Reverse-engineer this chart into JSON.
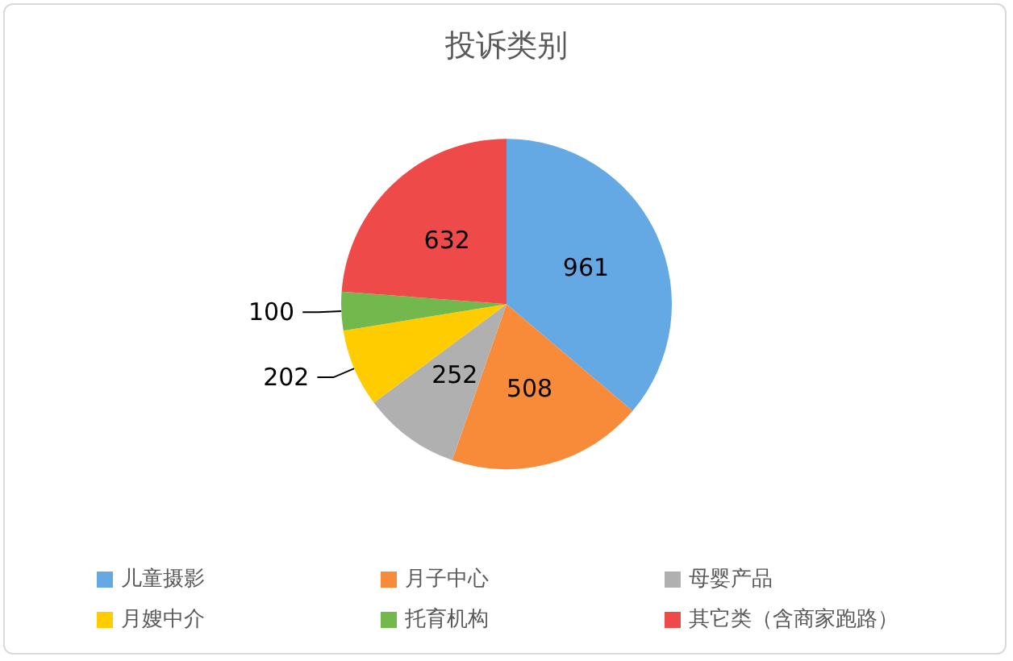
{
  "chart_data": {
    "type": "pie",
    "title": "投诉类别",
    "categories": [
      "儿童摄影",
      "月子中心",
      "母婴产品",
      "月嫂中介",
      "托育机构",
      "其它类（含商家跑路）"
    ],
    "values": [
      961,
      508,
      252,
      202,
      100,
      632
    ],
    "colors": [
      "#64a8e4",
      "#f88b3a",
      "#b0b0b0",
      "#ffcc00",
      "#72b84c",
      "#ee4a4a"
    ],
    "data_labels": true,
    "legend": "bottom"
  }
}
